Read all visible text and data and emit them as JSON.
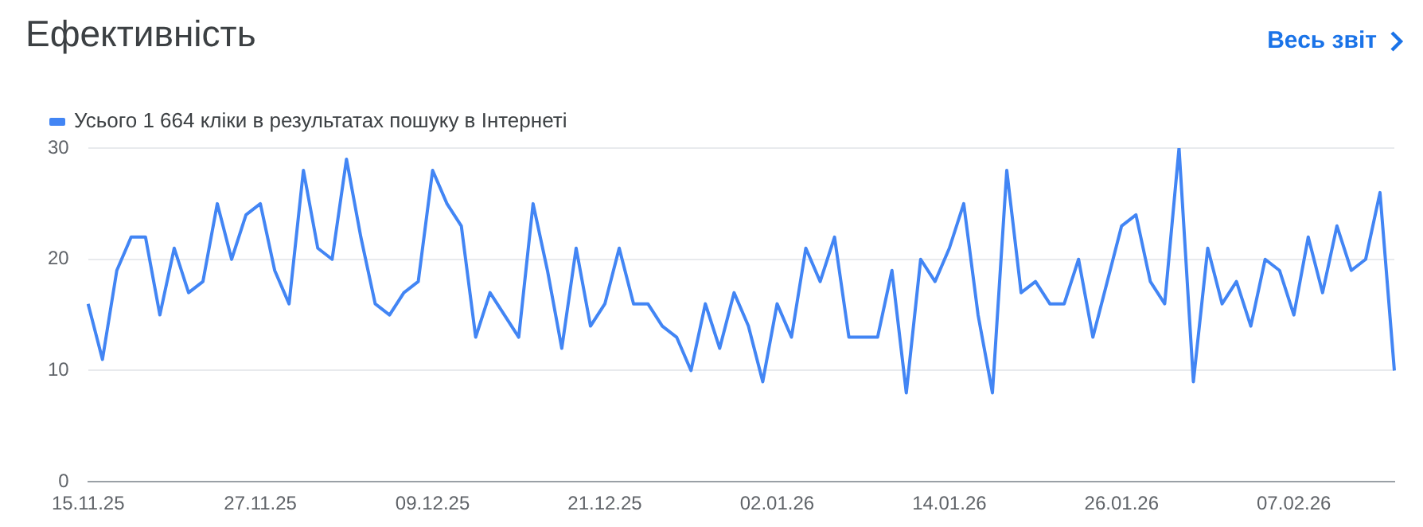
{
  "chart_data": {
    "type": "line",
    "title": "Ефективність",
    "annotations": [
      "Весь звіт"
    ],
    "categories": [
      "15.11.25",
      null,
      null,
      null,
      null,
      null,
      null,
      null,
      null,
      null,
      null,
      null,
      "27.11.25",
      null,
      null,
      null,
      null,
      null,
      null,
      null,
      null,
      null,
      null,
      null,
      "09.12.25",
      null,
      null,
      null,
      null,
      null,
      null,
      null,
      null,
      null,
      null,
      null,
      "21.12.25",
      null,
      null,
      null,
      null,
      null,
      null,
      null,
      null,
      null,
      null,
      null,
      "02.01.26",
      null,
      null,
      null,
      null,
      null,
      null,
      null,
      null,
      null,
      null,
      null,
      "14.01.26",
      null,
      null,
      null,
      null,
      null,
      null,
      null,
      null,
      null,
      null,
      null,
      "26.01.26",
      null,
      null,
      null,
      null,
      null,
      null,
      null,
      null,
      null,
      null,
      null,
      "07.02.26",
      null,
      null,
      null,
      null,
      null,
      null,
      null
    ],
    "series": [
      {
        "name": "Усього 1 664 кліки в результатах пошуку в Інтернеті",
        "color": "#4285f4",
        "values": [
          16,
          11,
          19,
          22,
          22,
          15,
          21,
          17,
          18,
          25,
          20,
          24,
          25,
          19,
          16,
          28,
          21,
          20,
          29,
          22,
          16,
          15,
          17,
          18,
          28,
          25,
          23,
          13,
          17,
          15,
          13,
          25,
          19,
          12,
          21,
          14,
          16,
          21,
          16,
          16,
          14,
          13,
          10,
          16,
          12,
          17,
          14,
          9,
          16,
          13,
          21,
          18,
          22,
          13,
          13,
          13,
          19,
          8,
          20,
          18,
          21,
          25,
          15,
          8,
          28,
          17,
          18,
          16,
          16,
          20,
          13,
          18,
          23,
          24,
          18,
          16,
          30,
          9,
          21,
          16,
          18,
          14,
          20,
          19,
          15,
          22,
          17,
          23,
          19,
          20,
          26,
          10
        ]
      }
    ],
    "ylim": [
      0,
      30
    ],
    "yticks": [
      0,
      10,
      20,
      30
    ],
    "grid": "y",
    "legend": "top left",
    "marker": "none"
  }
}
